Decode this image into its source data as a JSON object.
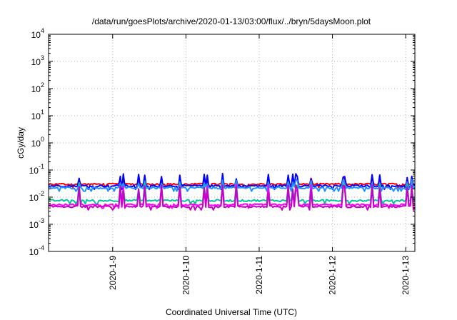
{
  "chart_data": {
    "type": "line",
    "title": "/data/run/goesPlots/archive/2020-01-13/03:00/flux/../bryn/5daysMoon.plot",
    "xlabel": "Coordinated Universal Time (UTC)",
    "ylabel": "cGy/day",
    "yscale": "log",
    "ylim": [
      0.0001,
      10000
    ],
    "yticks": [
      {
        "base": "10",
        "exp": "-4",
        "value": 0.0001
      },
      {
        "base": "10",
        "exp": "-3",
        "value": 0.001
      },
      {
        "base": "10",
        "exp": "-2",
        "value": 0.01
      },
      {
        "base": "10",
        "exp": "-1",
        "value": 0.1
      },
      {
        "base": "10",
        "exp": "0",
        "value": 1
      },
      {
        "base": "10",
        "exp": "1",
        "value": 10
      },
      {
        "base": "10",
        "exp": "2",
        "value": 100
      },
      {
        "base": "10",
        "exp": "3",
        "value": 1000
      },
      {
        "base": "10",
        "exp": "4",
        "value": 10000
      }
    ],
    "xlim": [
      "2020-01-08 03:00",
      "2020-01-13 03:00"
    ],
    "xticks": [
      "2020-1-9",
      "2020-1-10",
      "2020-1-11",
      "2020-1-12",
      "2020-1-13"
    ],
    "grid": true,
    "series": [
      {
        "color": "#ff0000",
        "base": 0.03,
        "spike_max": 0.05
      },
      {
        "color": "#0000ff",
        "base": 0.026,
        "spike_max": 0.075
      },
      {
        "color": "#1e90ff",
        "base": 0.022,
        "spike_max": 0.045
      },
      {
        "color": "#00c896",
        "base": 0.0075,
        "spike_max": 0.035
      },
      {
        "color": "#ff00ff",
        "base": 0.0052,
        "spike_max": 0.03
      },
      {
        "color": "#c800c8",
        "base": 0.0045,
        "spike_max": 0.028
      }
    ]
  }
}
